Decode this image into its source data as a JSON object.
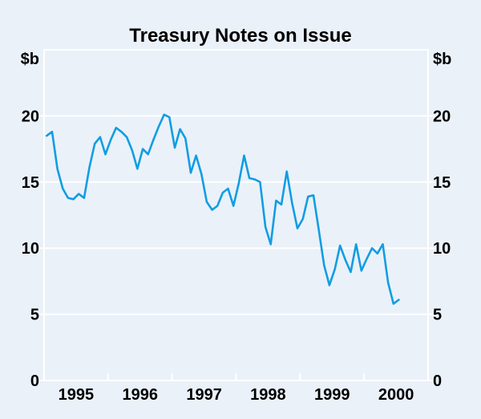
{
  "title": "Treasury Notes on Issue",
  "chart_data": {
    "type": "line",
    "title": "Treasury Notes on Issue",
    "legend": "none",
    "grid": "horizontal white gridlines on pale blue background, full frame around plot",
    "y_axis": {
      "unit_label_left": "$b",
      "unit_label_right": "$b",
      "tick_values": [
        0,
        5,
        10,
        15,
        20
      ],
      "gridlines_at": [
        5,
        10,
        15,
        20
      ],
      "ylim": [
        0,
        25
      ],
      "labels_on_both_sides": true
    },
    "x_axis": {
      "year_labels": [
        "1995",
        "1996",
        "1997",
        "1998",
        "1999",
        "2000"
      ],
      "start": "1995-01",
      "end": "2000-07",
      "frequency": "monthly",
      "ticks": "white inward ticks at each year boundary"
    },
    "series": [
      {
        "name": "Treasury Notes on Issue",
        "unit": "$b",
        "monthly_values": [
          18.5,
          18.8,
          16.0,
          14.5,
          13.8,
          13.7,
          14.1,
          13.8,
          16.1,
          17.9,
          18.4,
          17.1,
          18.2,
          19.1,
          18.8,
          18.4,
          17.4,
          16.0,
          17.5,
          17.1,
          18.2,
          19.2,
          20.1,
          19.9,
          17.6,
          19.0,
          18.3,
          15.7,
          17.0,
          15.6,
          13.5,
          12.9,
          13.2,
          14.2,
          14.5,
          13.2,
          14.9,
          17.0,
          15.3,
          15.2,
          15.0,
          11.6,
          10.3,
          13.6,
          13.3,
          15.8,
          13.4,
          11.5,
          12.2,
          13.9,
          14.0,
          11.4,
          8.7,
          7.2,
          8.4,
          10.2,
          9.1,
          8.2,
          10.3,
          8.3,
          9.2,
          10.0,
          9.6,
          10.3,
          7.4,
          5.8,
          6.1
        ]
      }
    ],
    "colors": {
      "line": "#129de2",
      "background": "#eaf1f9",
      "grid": "#ffffff",
      "text": "#000000"
    }
  }
}
